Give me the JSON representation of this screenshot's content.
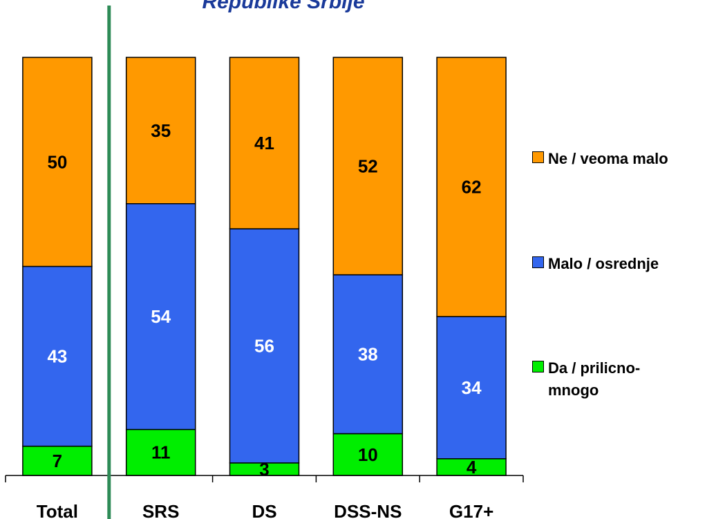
{
  "chart_data": {
    "type": "bar",
    "stacked": true,
    "percent_stacked": true,
    "title": "Republike Srbije",
    "categories": [
      "Total",
      "SRS",
      "DS",
      "DSS-NS",
      "G17+"
    ],
    "series": [
      {
        "name": "Da / prilicno- mnogo",
        "color": "#00ee00",
        "label_color": "#000000",
        "values": [
          7,
          11,
          3,
          10,
          4
        ]
      },
      {
        "name": "Malo / osrednje",
        "color": "#3366ee",
        "label_color": "#ffffff",
        "values": [
          43,
          54,
          56,
          38,
          34
        ]
      },
      {
        "name": "Ne / veoma malo",
        "color": "#ff9900",
        "label_color": "#000000",
        "values": [
          50,
          35,
          41,
          52,
          62
        ]
      }
    ],
    "legend_order": [
      2,
      1,
      0
    ],
    "separator_after_category": "Total",
    "separator_color": "#2e8b57",
    "ylim": [
      0,
      100
    ],
    "grid": false,
    "legend": "right"
  }
}
